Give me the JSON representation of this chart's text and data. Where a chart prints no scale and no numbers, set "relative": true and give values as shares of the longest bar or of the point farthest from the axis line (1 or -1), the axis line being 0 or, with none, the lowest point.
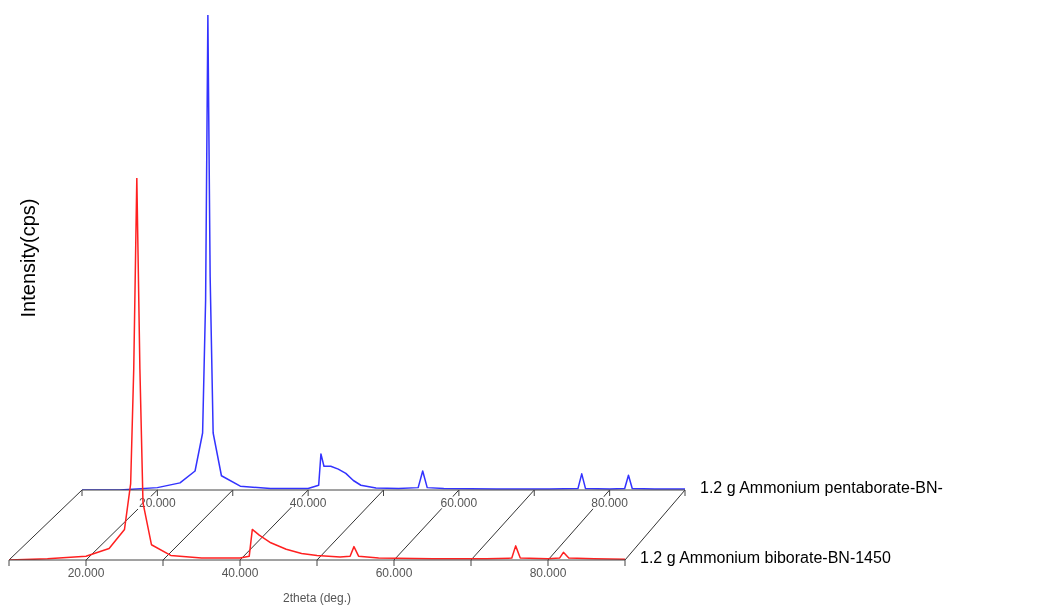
{
  "chart_data": [
    {
      "type": "line",
      "relative": true,
      "xlim": [
        10,
        90
      ],
      "xticks": [
        {
          "value": 10,
          "label": null
        },
        {
          "value": 20,
          "label": "20.000"
        },
        {
          "value": 30,
          "label": null
        },
        {
          "value": 40,
          "label": "40.000"
        },
        {
          "value": 50,
          "label": null
        },
        {
          "value": 60,
          "label": "60.000"
        },
        {
          "value": 70,
          "label": null
        },
        {
          "value": 80,
          "label": "80.000"
        },
        {
          "value": 90,
          "label": null
        }
      ],
      "x": [
        10,
        15,
        20,
        23,
        25,
        26,
        26.4,
        26.7,
        27,
        27.4,
        28.5,
        31,
        35,
        40,
        41.4,
        41.7,
        42.1,
        43,
        44,
        45,
        46,
        47,
        49,
        52,
        54.6,
        55.2,
        55.8,
        58,
        65,
        72,
        75.8,
        76.3,
        76.8,
        80,
        82,
        82.5,
        83,
        86,
        90
      ],
      "series": [
        {
          "name": "1.2 g Ammonium pentaborate-BN-",
          "color": "#3333ff",
          "values": [
            0,
            0,
            0.005,
            0.015,
            0.04,
            0.12,
            0.4,
            1,
            0.45,
            0.12,
            0.03,
            0.008,
            0.003,
            0.003,
            0.01,
            0.076,
            0.05,
            0.05,
            0.044,
            0.035,
            0.02,
            0.01,
            0.004,
            0.003,
            0.005,
            0.04,
            0.005,
            0.003,
            0.002,
            0.002,
            0.003,
            0.034,
            0.003,
            0.002,
            0.003,
            0.031,
            0.003,
            0.002,
            0.002
          ]
        }
      ]
    },
    {
      "type": "line",
      "relative": true,
      "xlabel": "2theta (deg.)",
      "ylabel": "Intensity(cps)",
      "xlim": [
        10,
        90
      ],
      "xticks": [
        {
          "value": 10,
          "label": null
        },
        {
          "value": 20,
          "label": "20.000"
        },
        {
          "value": 30,
          "label": null
        },
        {
          "value": 40,
          "label": "40.000"
        },
        {
          "value": 50,
          "label": null
        },
        {
          "value": 60,
          "label": "60.000"
        },
        {
          "value": 70,
          "label": null
        },
        {
          "value": 80,
          "label": "80.000"
        },
        {
          "value": 90,
          "label": null
        }
      ],
      "x": [
        10,
        15,
        20,
        23,
        25,
        25.8,
        26.2,
        26.6,
        27,
        27.4,
        28.5,
        31,
        35,
        40,
        41.2,
        41.6,
        42.5,
        44,
        46,
        48,
        50,
        53,
        54.3,
        54.8,
        55.4,
        58,
        65,
        72,
        75.3,
        75.8,
        76.4,
        80,
        81.5,
        82,
        82.7,
        86,
        90
      ],
      "series": [
        {
          "name": "1.2 g Ammonium biborate-BN-1450",
          "color": "#ff2020",
          "values": [
            0,
            0.003,
            0.01,
            0.03,
            0.08,
            0.2,
            0.5,
            1,
            0.5,
            0.15,
            0.04,
            0.012,
            0.005,
            0.005,
            0.01,
            0.08,
            0.065,
            0.045,
            0.028,
            0.017,
            0.012,
            0.008,
            0.01,
            0.035,
            0.01,
            0.005,
            0.003,
            0.003,
            0.005,
            0.037,
            0.005,
            0.003,
            0.005,
            0.02,
            0.005,
            0.003,
            0.002
          ]
        }
      ]
    }
  ]
}
